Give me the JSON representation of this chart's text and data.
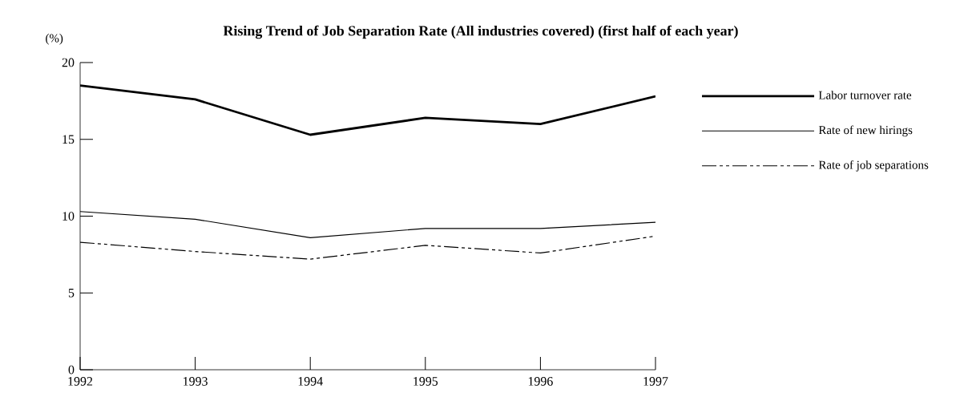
{
  "chart_data": {
    "type": "line",
    "title": "Rising Trend of Job Separation Rate (All industries covered) (first half of each year)",
    "ylabel": "(%)",
    "categories": [
      "1992",
      "1993",
      "1994",
      "1995",
      "1996",
      "1997"
    ],
    "series": [
      {
        "name": "Labor turnover rate",
        "color": "#000000",
        "line_style": "solid",
        "values": [
          18.5,
          17.6,
          15.3,
          16.4,
          16.0,
          17.8
        ]
      },
      {
        "name": "Rate of new hirings",
        "color": "#000000",
        "line_style": "solid",
        "values": [
          10.3,
          9.8,
          8.6,
          9.2,
          9.2,
          9.6
        ]
      },
      {
        "name": "Rate of job separations",
        "color": "#000000",
        "line_style": "dashed",
        "values": [
          8.3,
          7.7,
          7.2,
          8.1,
          7.6,
          8.7
        ]
      }
    ],
    "ylim": [
      0,
      20
    ],
    "yticks": [
      0,
      5,
      10,
      15,
      20
    ],
    "grid": false,
    "legend": "right",
    "marker": "none"
  }
}
